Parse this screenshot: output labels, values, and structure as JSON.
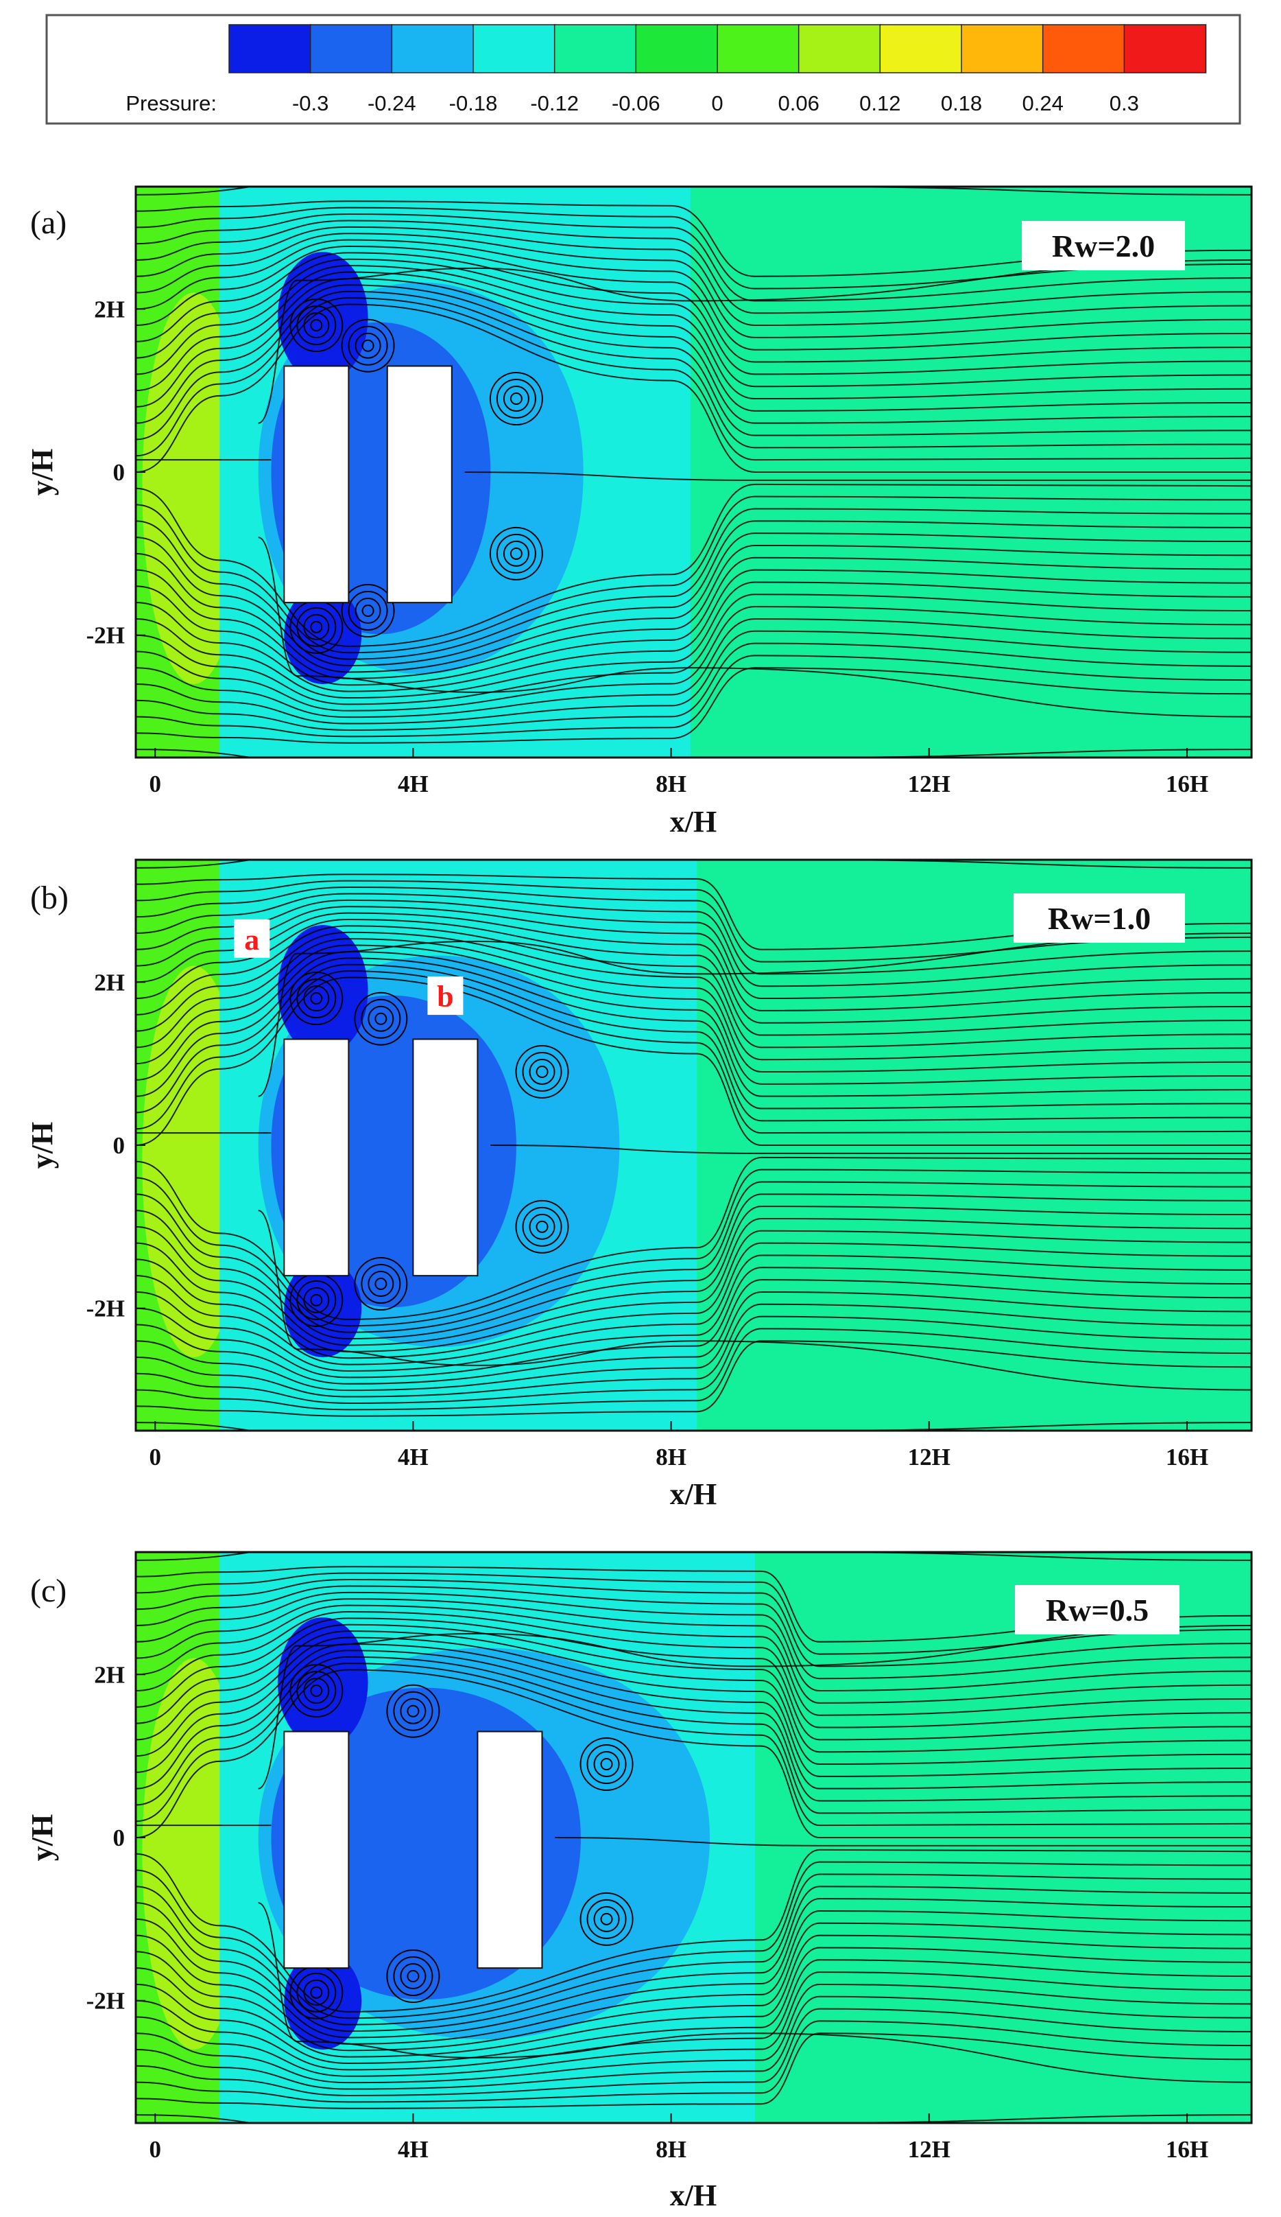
{
  "colorbar": {
    "title": "Pressure:",
    "ticks": [
      "-0.3",
      "-0.24",
      "-0.18",
      "-0.12",
      "-0.06",
      "0",
      "0.06",
      "0.12",
      "0.18",
      "0.24",
      "0.3"
    ],
    "levels": [
      -0.3,
      -0.24,
      -0.18,
      -0.12,
      -0.06,
      0,
      0.06,
      0.12,
      0.18,
      0.24,
      0.3
    ],
    "colors": [
      "#0a1ee8",
      "#1a64f0",
      "#19b4f2",
      "#18eedd",
      "#14f09a",
      "#1de83a",
      "#4cf21a",
      "#a6f216",
      "#eef216",
      "#ffb80a",
      "#ff5a0a",
      "#f01a1a"
    ]
  },
  "chart_data": [
    {
      "type": "heatmap",
      "panel": "(a)",
      "annotation": "Rw=2.0",
      "xlabel": "x/H",
      "ylabel": "y/H",
      "xticks": [
        "0",
        "4H",
        "8H",
        "12H",
        "16H"
      ],
      "yticks": [
        "2H",
        "0",
        "-2H"
      ],
      "xlim": [
        -0.3,
        17
      ],
      "ylim": [
        -3.5,
        3.5
      ],
      "buildings": [
        [
          2,
          3,
          -1.6,
          1.3
        ],
        [
          3.6,
          4.6,
          -1.6,
          1.3
        ]
      ],
      "wake_x": [
        0,
        8.3
      ],
      "markers": []
    },
    {
      "type": "heatmap",
      "panel": "(b)",
      "annotation": "Rw=1.0",
      "xlabel": "x/H",
      "ylabel": "y/H",
      "xticks": [
        "0",
        "4H",
        "8H",
        "12H",
        "16H"
      ],
      "yticks": [
        "2H",
        "0",
        "-2H"
      ],
      "xlim": [
        -0.3,
        17
      ],
      "ylim": [
        -3.5,
        3.5
      ],
      "buildings": [
        [
          2,
          3,
          -1.6,
          1.3
        ],
        [
          4,
          5,
          -1.6,
          1.3
        ]
      ],
      "wake_x": [
        0,
        8.4
      ],
      "markers": [
        {
          "label": "a",
          "x": 1.5,
          "y": 2.5
        },
        {
          "label": "b",
          "x": 4.5,
          "y": 1.8
        }
      ]
    },
    {
      "type": "heatmap",
      "panel": "(c)",
      "annotation": "Rw=0.5",
      "xlabel": "x/H",
      "ylabel": "y/H",
      "xticks": [
        "0",
        "4H",
        "8H",
        "12H",
        "16H"
      ],
      "yticks": [
        "2H",
        "0",
        "-2H"
      ],
      "xlim": [
        -0.3,
        17
      ],
      "ylim": [
        -3.5,
        3.5
      ],
      "buildings": [
        [
          2,
          3,
          -1.6,
          1.3
        ],
        [
          5,
          6,
          -1.6,
          1.3
        ]
      ],
      "wake_x": [
        0,
        9.3
      ],
      "markers": []
    }
  ]
}
